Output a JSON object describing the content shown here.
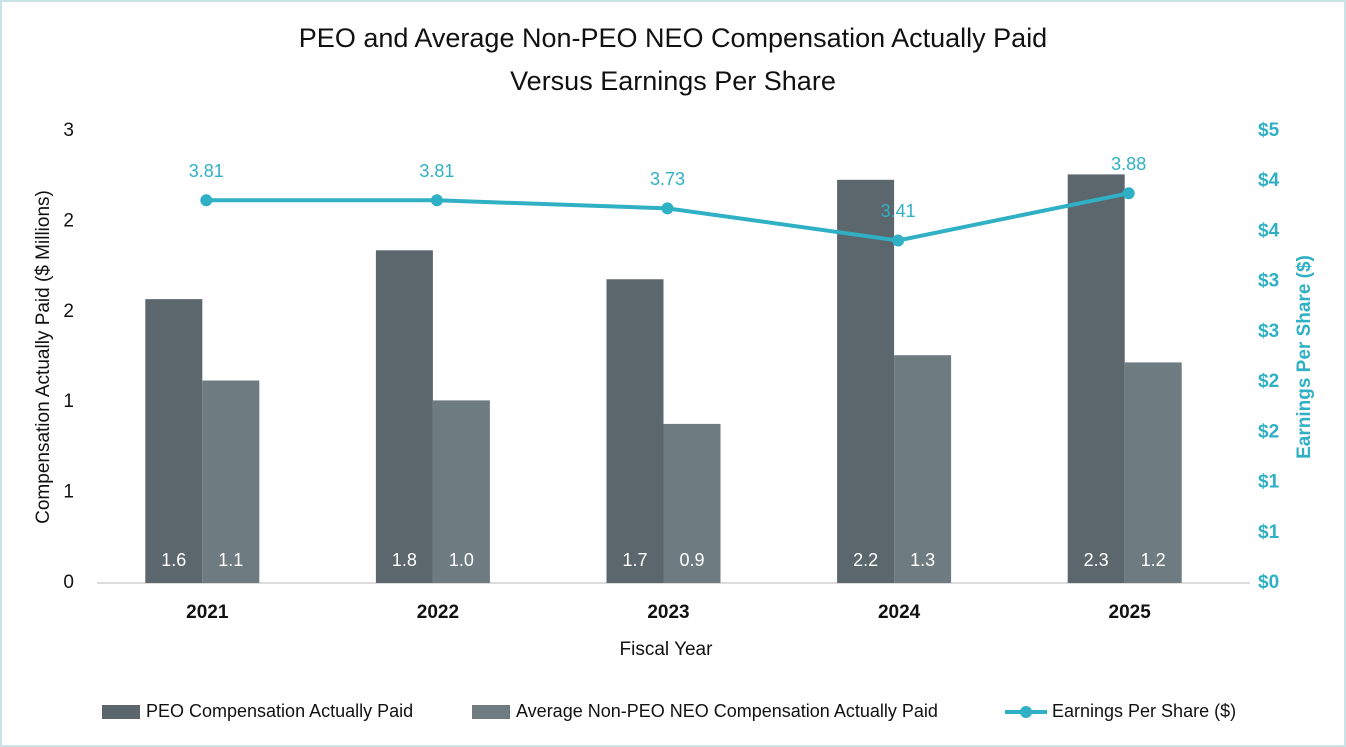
{
  "chart_data": {
    "type": "bar",
    "title": "PEO and Average Non-PEO NEO Compensation Actually Paid",
    "subtitle": "Versus Earnings Per Share",
    "x_label": "Fiscal Year",
    "y_label": "Compensation Actually Paid ($ Millions)",
    "y2_label": "Earnings Per Share ($)",
    "categories": [
      "2021",
      "2022",
      "2023",
      "2024",
      "2025"
    ],
    "series": [
      {
        "name": "PEO Compensation Actually Paid",
        "color": "#5c676d",
        "values": [
          1.57,
          1.84,
          1.68,
          2.23,
          2.26
        ],
        "value_labels": [
          "1.6",
          "1.8",
          "1.7",
          "2.2",
          "2.3"
        ]
      },
      {
        "name": "Average Non-PEO NEO Compensation Actually Paid",
        "color": "#6e7b81",
        "values": [
          1.12,
          1.01,
          0.88,
          1.26,
          1.22
        ],
        "value_labels": [
          "1.1",
          "1.0",
          "0.9",
          "1.3",
          "1.2"
        ]
      },
      {
        "name": "Earnings Per Share ($)",
        "color": "#2fb0c4",
        "type": "line",
        "axis": "y2",
        "values": [
          3.81,
          3.81,
          3.73,
          3.41,
          3.88
        ]
      }
    ],
    "ylim": [
      0,
      2.5
    ],
    "yticks": [
      0,
      {
        "value": 0.5,
        "label": "1"
      },
      {
        "value": 1,
        "label": "1"
      },
      {
        "value": 1.5,
        "label": "2"
      },
      {
        "value": 2,
        "label": "2"
      },
      {
        "value": 2.5,
        "label": "3"
      }
    ],
    "y2lim": [
      0,
      4.5
    ],
    "y2ticks": [
      {
        "value": 0,
        "label": "$0"
      },
      {
        "value": 0.5,
        "label": "$1"
      },
      {
        "value": 1,
        "label": "$1"
      },
      {
        "value": 1.5,
        "label": "$2"
      },
      {
        "value": 2,
        "label": "$2"
      },
      {
        "value": 2.5,
        "label": "$3"
      },
      {
        "value": 3,
        "label": "$3"
      },
      {
        "value": 3.5,
        "label": "$4"
      },
      {
        "value": 4,
        "label": "$4"
      },
      {
        "value": 4.5,
        "label": "$5"
      }
    ],
    "legend": "bottom"
  }
}
